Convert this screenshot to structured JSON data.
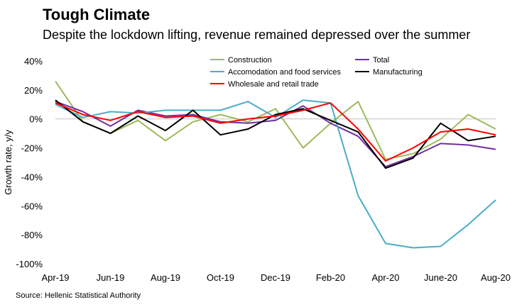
{
  "title": "Tough Climate",
  "subtitle": "Despite the lockdown lifting, revenue remained depressed over the summer",
  "source": "Source: Hellenic Statistical Authority",
  "chart_data": {
    "type": "line",
    "ylabel": "Growth rate, y/y",
    "xlabel": "",
    "ylim": [
      -100,
      40
    ],
    "yticks": [
      -100,
      -80,
      -60,
      -40,
      -20,
      0,
      20,
      40
    ],
    "ytick_labels": [
      "-100%",
      "-80%",
      "-60%",
      "-40%",
      "-20%",
      "0%",
      "20%",
      "40%"
    ],
    "categories": [
      "Apr-19",
      "May-19",
      "Jun-19",
      "Jul-19",
      "Aug-19",
      "Sep-19",
      "Oct-19",
      "Nov-19",
      "Dec-19",
      "Jan-20",
      "Feb-20",
      "Mar-20",
      "Apr-20",
      "May-20",
      "June-20",
      "Jul-20",
      "Aug-20"
    ],
    "xtick_labels": [
      "Apr-19",
      "",
      "Jun-19",
      "",
      "Aug-19",
      "",
      "Oct-19",
      "",
      "Dec-19",
      "",
      "Feb-20",
      "",
      "Apr-20",
      "",
      "June-20",
      "",
      "Aug-20"
    ],
    "gridlines": false,
    "legend_position": "top",
    "series": [
      {
        "name": "Construction",
        "color": "#9bbb59",
        "values": [
          26,
          -2,
          -10,
          -1,
          -15,
          -2,
          3,
          -2,
          7,
          -20,
          -3,
          12,
          -28,
          -24,
          -14,
          3,
          -7
        ]
      },
      {
        "name": "Total",
        "color": "#7030a0",
        "values": [
          12,
          5,
          -5,
          6,
          2,
          3,
          -2,
          -3,
          -1,
          9,
          -3,
          -12,
          -33,
          -26,
          -17,
          -18,
          -21
        ]
      },
      {
        "name": "Accomodation and food services",
        "color": "#4bacc6",
        "values": [
          10,
          1,
          5,
          4,
          6,
          6,
          6,
          12,
          1,
          13,
          11,
          -53,
          -86,
          -89,
          -88,
          -73,
          -56
        ]
      },
      {
        "name": "Manufacturing",
        "color": "#000000",
        "values": [
          13,
          -2,
          -10,
          2,
          -8,
          6,
          -11,
          -7,
          3,
          7,
          -1,
          -9,
          -34,
          -27,
          -3,
          -15,
          -12
        ]
      },
      {
        "name": "Wholesale and retail trade",
        "color": "#ff0000",
        "values": [
          11,
          3,
          -1,
          5,
          1,
          2,
          -3,
          0,
          2,
          6,
          11,
          -7,
          -29,
          -20,
          -9,
          -7,
          -11
        ]
      }
    ]
  }
}
